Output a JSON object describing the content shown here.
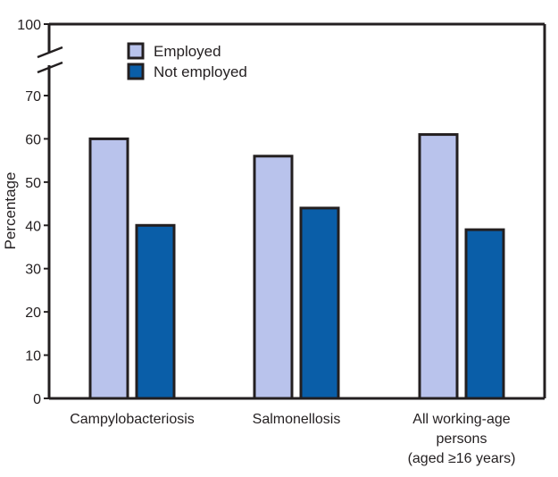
{
  "chart_data": {
    "type": "bar",
    "title": "",
    "xlabel": "",
    "ylabel": "Percentage",
    "ylim": [
      0,
      100
    ],
    "axis_break": [
      70,
      100
    ],
    "yticks": [
      0,
      10,
      20,
      30,
      40,
      50,
      60,
      70,
      100
    ],
    "grid": false,
    "legend_placement": "top-left",
    "categories": [
      [
        "Campylobacteriosis"
      ],
      [
        "Salmonellosis"
      ],
      [
        "All working-age",
        "persons",
        "(aged ≥16 years)"
      ]
    ],
    "series": [
      {
        "name": "Employed",
        "color": "#b9c3ec",
        "values": [
          60,
          56,
          61
        ]
      },
      {
        "name": "Not employed",
        "color": "#0a5ea8",
        "values": [
          40,
          44,
          39
        ]
      }
    ]
  }
}
